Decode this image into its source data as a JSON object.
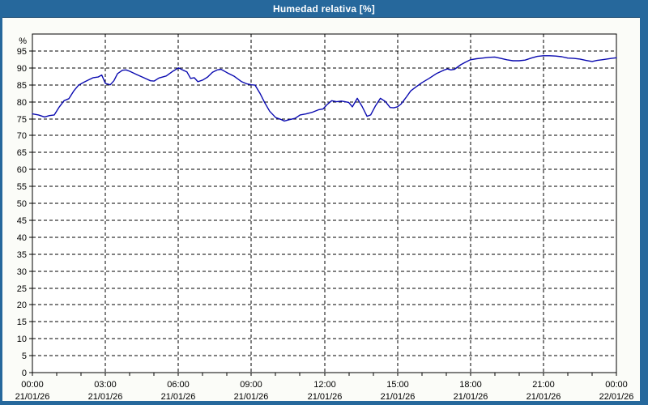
{
  "window": {
    "title": "Humedad relativa [%]"
  },
  "colors": {
    "titlebar_bg": "#26689c",
    "titlebar_border": "#1a4a72",
    "titlebar_text": "#ffffff",
    "frame": "#26689c",
    "content_bg": "#fbfcf8",
    "plot_bg": "#ffffff",
    "axis": "#000000",
    "grid": "#000000",
    "text": "#000000",
    "series_line": "#0a0ab0"
  },
  "chart_data": {
    "type": "line",
    "title": "Humedad relativa [%]",
    "ylabel": "%",
    "ylim": [
      0,
      100
    ],
    "y_tick_step": 5,
    "y_tick_labels": [
      "0",
      "5",
      "10",
      "15",
      "20",
      "25",
      "30",
      "35",
      "40",
      "45",
      "50",
      "55",
      "60",
      "65",
      "70",
      "75",
      "80",
      "85",
      "90",
      "95"
    ],
    "grid": "dashed",
    "legend": "none",
    "x_axis": {
      "unit": "hours",
      "range": [
        0,
        24
      ],
      "minor_tick_step": 1,
      "major_ticks": [
        {
          "hour": 0,
          "time": "00:00",
          "date": "21/01/26"
        },
        {
          "hour": 3,
          "time": "03:00",
          "date": "21/01/26"
        },
        {
          "hour": 6,
          "time": "06:00",
          "date": "21/01/26"
        },
        {
          "hour": 9,
          "time": "09:00",
          "date": "21/01/26"
        },
        {
          "hour": 12,
          "time": "12:00",
          "date": "21/01/26"
        },
        {
          "hour": 15,
          "time": "15:00",
          "date": "21/01/26"
        },
        {
          "hour": 18,
          "time": "18:00",
          "date": "21/01/26"
        },
        {
          "hour": 21,
          "time": "21:00",
          "date": "21/01/26"
        },
        {
          "hour": 24,
          "time": "00:00",
          "date": "22/01/26"
        }
      ]
    },
    "series": [
      {
        "name": "Humedad relativa",
        "color": "#0a0ab0",
        "points": [
          [
            0,
            76.4
          ],
          [
            0.25,
            76.1
          ],
          [
            0.5,
            75.5
          ],
          [
            0.7,
            75.9
          ],
          [
            0.9,
            76.1
          ],
          [
            1.1,
            78.4
          ],
          [
            1.3,
            80.3
          ],
          [
            1.5,
            80.9
          ],
          [
            1.7,
            83.2
          ],
          [
            1.9,
            84.9
          ],
          [
            2.1,
            85.7
          ],
          [
            2.3,
            86.4
          ],
          [
            2.5,
            87.1
          ],
          [
            2.7,
            87.3
          ],
          [
            2.85,
            87.9
          ],
          [
            3,
            85.4
          ],
          [
            3.2,
            85
          ],
          [
            3.35,
            86.2
          ],
          [
            3.5,
            88.3
          ],
          [
            3.7,
            89.3
          ],
          [
            3.85,
            89.4
          ],
          [
            4,
            89
          ],
          [
            4.3,
            88
          ],
          [
            4.6,
            87
          ],
          [
            4.85,
            86.2
          ],
          [
            5,
            86.1
          ],
          [
            5.2,
            87
          ],
          [
            5.5,
            87.6
          ],
          [
            5.75,
            88.9
          ],
          [
            6,
            90
          ],
          [
            6.2,
            89.3
          ],
          [
            6.35,
            88.8
          ],
          [
            6.5,
            86.9
          ],
          [
            6.65,
            87.1
          ],
          [
            6.8,
            85.9
          ],
          [
            7,
            86.4
          ],
          [
            7.2,
            87.3
          ],
          [
            7.4,
            88.7
          ],
          [
            7.6,
            89.4
          ],
          [
            7.75,
            89.6
          ],
          [
            8,
            88.6
          ],
          [
            8.3,
            87.5
          ],
          [
            8.6,
            85.9
          ],
          [
            8.8,
            85.3
          ],
          [
            9,
            85
          ],
          [
            9.15,
            84.9
          ],
          [
            9.35,
            82.5
          ],
          [
            9.55,
            79.7
          ],
          [
            9.75,
            77.2
          ],
          [
            10,
            75.3
          ],
          [
            10.2,
            74.8
          ],
          [
            10.35,
            74.3
          ],
          [
            10.55,
            74.7
          ],
          [
            10.8,
            75.1
          ],
          [
            11,
            76.1
          ],
          [
            11.25,
            76.4
          ],
          [
            11.5,
            76.9
          ],
          [
            11.75,
            77.6
          ],
          [
            11.95,
            77.9
          ],
          [
            12.1,
            79.1
          ],
          [
            12.3,
            80.3
          ],
          [
            12.5,
            80
          ],
          [
            12.7,
            80.2
          ],
          [
            12.85,
            80
          ],
          [
            13,
            79.8
          ],
          [
            13.15,
            78.5
          ],
          [
            13.35,
            81
          ],
          [
            13.55,
            78.6
          ],
          [
            13.75,
            75.7
          ],
          [
            13.9,
            76.1
          ],
          [
            14.1,
            78.8
          ],
          [
            14.3,
            81
          ],
          [
            14.5,
            80.1
          ],
          [
            14.7,
            78.3
          ],
          [
            14.85,
            78.2
          ],
          [
            15,
            78.5
          ],
          [
            15.15,
            79.3
          ],
          [
            15.35,
            81.2
          ],
          [
            15.55,
            83.2
          ],
          [
            15.75,
            84.3
          ],
          [
            16,
            85.6
          ],
          [
            16.3,
            86.9
          ],
          [
            16.6,
            88.3
          ],
          [
            16.9,
            89.3
          ],
          [
            17.05,
            89.7
          ],
          [
            17.2,
            89.4
          ],
          [
            17.35,
            89.6
          ],
          [
            17.6,
            90.9
          ],
          [
            17.8,
            91.7
          ],
          [
            18,
            92.4
          ],
          [
            18.25,
            92.7
          ],
          [
            18.5,
            92.9
          ],
          [
            18.75,
            93.1
          ],
          [
            19,
            93.2
          ],
          [
            19.25,
            92.8
          ],
          [
            19.5,
            92.4
          ],
          [
            19.75,
            92.1
          ],
          [
            20,
            92.1
          ],
          [
            20.25,
            92.3
          ],
          [
            20.5,
            92.9
          ],
          [
            20.75,
            93.4
          ],
          [
            21,
            93.6
          ],
          [
            21.25,
            93.6
          ],
          [
            21.5,
            93.5
          ],
          [
            21.75,
            93.3
          ],
          [
            22,
            92.9
          ],
          [
            22.25,
            92.8
          ],
          [
            22.5,
            92.6
          ],
          [
            22.75,
            92.2
          ],
          [
            23,
            91.9
          ],
          [
            23.2,
            92.2
          ],
          [
            23.4,
            92.4
          ],
          [
            23.6,
            92.6
          ],
          [
            23.8,
            92.8
          ],
          [
            24,
            93
          ]
        ]
      }
    ]
  }
}
